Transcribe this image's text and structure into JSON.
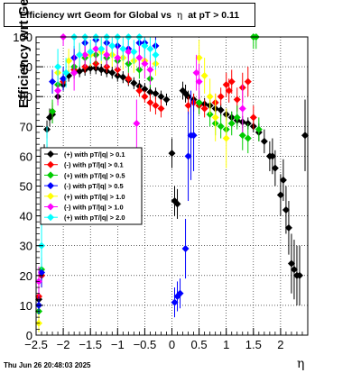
{
  "chart_data": {
    "type": "scatter",
    "title_prefix": "Efficiency wrt Geom for Global vs",
    "title_symbol": "η",
    "title_suffix": "at pT > 0.11",
    "xlabel": "η",
    "ylabel": "Efficiency wrt Geom (%)",
    "xlim": [
      -2.5,
      2.5
    ],
    "ylim": [
      0,
      100
    ],
    "xticks": [
      -2.5,
      -2,
      -1.5,
      -1,
      -0.5,
      0,
      0.5,
      1,
      1.5,
      2
    ],
    "xtick_labels": [
      "−2.5",
      "−2",
      "−1.5",
      "−1",
      "−0.5",
      "0",
      "0.5",
      "1",
      "1.5",
      "2"
    ],
    "yticks": [
      0,
      10,
      20,
      30,
      40,
      50,
      60,
      70,
      80,
      90,
      100
    ],
    "grid": true,
    "legend_position": "lower-left",
    "series": [
      {
        "name": "(+) with pT/|q| > 0.1",
        "color": "#000000",
        "points": [
          [
            -2.45,
            12,
            3
          ],
          [
            -2.4,
            20,
            4
          ],
          [
            -2.35,
            60,
            4
          ],
          [
            -2.3,
            69,
            3
          ],
          [
            -2.25,
            73,
            3
          ],
          [
            -2.2,
            74,
            3
          ],
          [
            -2.1,
            80,
            2
          ],
          [
            -2.0,
            84,
            2
          ],
          [
            -1.9,
            87,
            2
          ],
          [
            -1.8,
            88,
            2
          ],
          [
            -1.7,
            88.5,
            2
          ],
          [
            -1.6,
            89,
            2
          ],
          [
            -1.5,
            89.5,
            2
          ],
          [
            -1.4,
            89.5,
            2
          ],
          [
            -1.3,
            89,
            2
          ],
          [
            -1.2,
            88.5,
            2
          ],
          [
            -1.1,
            88,
            2
          ],
          [
            -1.0,
            87,
            2
          ],
          [
            -0.9,
            86.5,
            2
          ],
          [
            -0.8,
            85.5,
            2
          ],
          [
            -0.7,
            84.5,
            2
          ],
          [
            -0.6,
            83.5,
            2
          ],
          [
            -0.5,
            82.5,
            2
          ],
          [
            -0.4,
            81.5,
            2
          ],
          [
            -0.3,
            81,
            2
          ],
          [
            -0.2,
            80,
            2
          ],
          [
            -0.1,
            79,
            2
          ],
          [
            0.0,
            61,
            5
          ],
          [
            0.05,
            45,
            5
          ],
          [
            0.1,
            44,
            5
          ],
          [
            0.2,
            82,
            3
          ],
          [
            0.25,
            81,
            3
          ],
          [
            0.3,
            80,
            2
          ],
          [
            0.4,
            79,
            2
          ],
          [
            0.5,
            78,
            2
          ],
          [
            0.6,
            77.5,
            2
          ],
          [
            0.7,
            77,
            2
          ],
          [
            0.8,
            76,
            2
          ],
          [
            0.9,
            75.5,
            2
          ],
          [
            1.0,
            74,
            2
          ],
          [
            1.1,
            73,
            2
          ],
          [
            1.2,
            72,
            2
          ],
          [
            1.3,
            71.5,
            2
          ],
          [
            1.4,
            71,
            2
          ],
          [
            1.5,
            70,
            2
          ],
          [
            1.6,
            68,
            3
          ],
          [
            1.7,
            65,
            4
          ],
          [
            1.8,
            60,
            5
          ],
          [
            1.85,
            60,
            6
          ],
          [
            1.9,
            56,
            6
          ],
          [
            2.0,
            47,
            7
          ],
          [
            2.05,
            52,
            7
          ],
          [
            2.1,
            42,
            8
          ],
          [
            2.15,
            36,
            9
          ],
          [
            2.2,
            24,
            10
          ],
          [
            2.25,
            22,
            10
          ],
          [
            2.3,
            20,
            10
          ],
          [
            2.35,
            20,
            10
          ],
          [
            2.45,
            67,
            12
          ]
        ]
      },
      {
        "name": "(-) with pT/|q| > 0.1",
        "color": "#ff0000",
        "points": [
          [
            -2.45,
            13,
            3
          ],
          [
            -2.4,
            20,
            4
          ],
          [
            -2.3,
            60,
            4
          ],
          [
            -2.2,
            75,
            3
          ],
          [
            -2.0,
            85,
            2
          ],
          [
            -1.8,
            89,
            2
          ],
          [
            -1.6,
            90,
            2
          ],
          [
            -1.4,
            91,
            2
          ],
          [
            -1.2,
            90,
            2
          ],
          [
            -1.0,
            89,
            2
          ],
          [
            -0.8,
            86,
            2
          ],
          [
            -0.6,
            82,
            2
          ],
          [
            -0.5,
            80,
            2
          ],
          [
            -0.4,
            78,
            3
          ],
          [
            -0.3,
            77,
            3
          ],
          [
            -0.2,
            76,
            3
          ],
          [
            0.3,
            77,
            3
          ],
          [
            0.4,
            78,
            3
          ],
          [
            0.5,
            77,
            3
          ],
          [
            0.6,
            76,
            3
          ],
          [
            0.8,
            78,
            3
          ],
          [
            0.9,
            80,
            3
          ],
          [
            1.0,
            84,
            4
          ],
          [
            1.05,
            82,
            4
          ],
          [
            1.1,
            85,
            4
          ],
          [
            1.2,
            79,
            4
          ],
          [
            1.3,
            83,
            5
          ],
          [
            1.4,
            85,
            5
          ],
          [
            1.5,
            73,
            4
          ]
        ]
      },
      {
        "name": "(+) with pT/|q| > 0.5",
        "color": "#00cc00",
        "points": [
          [
            -2.45,
            8,
            3
          ],
          [
            -2.4,
            22,
            4
          ],
          [
            -2.3,
            55,
            4
          ],
          [
            -2.2,
            75,
            4
          ],
          [
            -2.1,
            84,
            3
          ],
          [
            -2.0,
            86,
            3
          ],
          [
            -1.8,
            90,
            3
          ],
          [
            -1.6,
            93,
            3
          ],
          [
            -1.4,
            94,
            3
          ],
          [
            -1.2,
            93,
            3
          ],
          [
            -1.0,
            92,
            3
          ],
          [
            -0.8,
            91,
            3
          ],
          [
            -0.6,
            89,
            3
          ],
          [
            -0.4,
            86,
            3
          ],
          [
            0.5,
            78,
            4
          ],
          [
            0.7,
            74,
            4
          ],
          [
            0.8,
            71,
            4
          ],
          [
            0.9,
            70,
            4
          ],
          [
            1.0,
            69,
            4
          ],
          [
            1.1,
            71,
            4
          ],
          [
            1.2,
            73,
            4
          ],
          [
            1.3,
            67,
            5
          ],
          [
            1.4,
            66,
            5
          ],
          [
            1.5,
            100,
            4
          ],
          [
            1.55,
            100,
            4
          ],
          [
            1.6,
            69,
            4
          ]
        ]
      },
      {
        "name": "(-) with pT/|q| > 0.5",
        "color": "#0000ff",
        "points": [
          [
            -2.45,
            10,
            4
          ],
          [
            -2.4,
            21,
            5
          ],
          [
            -2.2,
            85,
            4
          ],
          [
            -2.0,
            86,
            4
          ],
          [
            -1.8,
            93,
            4
          ],
          [
            -1.6,
            98,
            3
          ],
          [
            -1.4,
            99,
            3
          ],
          [
            -1.2,
            98,
            3
          ],
          [
            -1.0,
            97,
            3
          ],
          [
            -0.8,
            96,
            3
          ],
          [
            -0.6,
            98,
            3
          ],
          [
            -0.5,
            98,
            3
          ],
          [
            -0.3,
            97,
            3
          ],
          [
            0.05,
            11,
            5
          ],
          [
            0.1,
            13,
            5
          ],
          [
            0.15,
            14,
            5
          ],
          [
            0.25,
            29,
            10
          ],
          [
            0.3,
            60,
            15
          ],
          [
            0.35,
            67,
            15
          ],
          [
            0.4,
            67,
            12
          ]
        ]
      },
      {
        "name": "(+) with pT/|q| > 1.0",
        "color": "#ffff00",
        "points": [
          [
            -2.45,
            4,
            3
          ],
          [
            -2.3,
            60,
            5
          ],
          [
            -2.1,
            88,
            4
          ],
          [
            -1.9,
            92,
            4
          ],
          [
            -1.7,
            94,
            4
          ],
          [
            -1.5,
            94,
            4
          ],
          [
            -1.3,
            95,
            4
          ],
          [
            -1.1,
            94,
            4
          ],
          [
            -0.9,
            93,
            4
          ],
          [
            -0.7,
            92,
            4
          ],
          [
            -0.5,
            92,
            4
          ],
          [
            -0.3,
            91,
            4
          ],
          [
            0.5,
            93,
            6
          ],
          [
            0.6,
            87,
            6
          ],
          [
            0.7,
            80,
            6
          ],
          [
            0.8,
            73,
            8
          ],
          [
            1.0,
            66,
            10
          ]
        ]
      },
      {
        "name": "(-) with pT/|q| > 1.0",
        "color": "#ff00ff",
        "points": [
          [
            -2.45,
            18,
            5
          ],
          [
            -2.3,
            58,
            6
          ],
          [
            -2.1,
            82,
            5
          ],
          [
            -2.0,
            100,
            3
          ],
          [
            -1.8,
            88,
            6
          ],
          [
            -1.6,
            94,
            4
          ],
          [
            -1.4,
            96,
            4
          ],
          [
            -1.2,
            94,
            4
          ],
          [
            -1.0,
            93,
            4
          ],
          [
            -0.8,
            95,
            4
          ],
          [
            -0.6,
            93,
            4
          ],
          [
            -0.5,
            91,
            5
          ],
          [
            -0.65,
            71,
            8
          ],
          [
            -0.4,
            89,
            5
          ],
          [
            0.45,
            88,
            6
          ],
          [
            0.5,
            85,
            6
          ],
          [
            1.3,
            76,
            8
          ]
        ]
      },
      {
        "name": "(+) with pT/|q| > 2.0",
        "color": "#00ffff",
        "points": [
          [
            -2.4,
            30,
            8
          ],
          [
            -2.3,
            62,
            8
          ],
          [
            -2.1,
            90,
            6
          ],
          [
            -1.95,
            88,
            5
          ],
          [
            -1.8,
            100,
            4
          ],
          [
            -1.7,
            94,
            4
          ],
          [
            -1.6,
            100,
            3
          ],
          [
            -1.5,
            95,
            4
          ],
          [
            -1.4,
            100,
            3
          ],
          [
            -1.3,
            96,
            4
          ],
          [
            -1.2,
            100,
            3
          ],
          [
            -1.1,
            97,
            4
          ],
          [
            -1.0,
            100,
            3
          ],
          [
            -0.9,
            96,
            4
          ],
          [
            -0.8,
            100,
            3
          ],
          [
            -0.7,
            95,
            4
          ],
          [
            -0.6,
            100,
            3
          ],
          [
            -0.5,
            97,
            4
          ],
          [
            -0.4,
            96,
            4
          ],
          [
            -0.3,
            94,
            5
          ]
        ]
      }
    ]
  },
  "footer": {
    "timestamp": "Thu Jun 26 20:48:03 2025"
  }
}
